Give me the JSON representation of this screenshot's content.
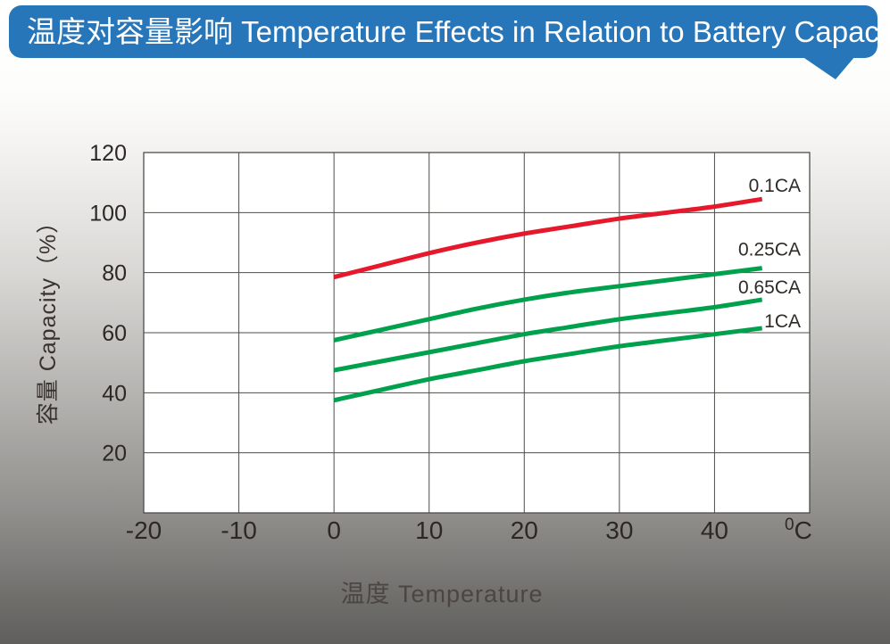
{
  "header": {
    "title": "温度对容量影响 Temperature Effects in Relation to Battery Capacity"
  },
  "colors": {
    "banner_blue": "#2776b9",
    "curve_red": "#e5192b",
    "curve_green": "#00a14d",
    "grid": "#4f4d4a",
    "tick_text": "#2c2824",
    "axis_title_text": "#4b4641"
  },
  "chart_data": {
    "type": "line",
    "title": "温度对容量影响 Temperature Effects in Relation to Battery Capacity",
    "xlabel": "温度  Temperature",
    "ylabel": "容量 Capacity（%）",
    "x_unit": {
      "superscript": "0",
      "letter": "C"
    },
    "xlim": [
      -20,
      50
    ],
    "ylim": [
      0,
      120
    ],
    "x_ticks": [
      -20,
      -10,
      0,
      10,
      20,
      30,
      40
    ],
    "y_ticks": [
      120,
      100,
      80,
      60,
      40,
      20
    ],
    "grid": true,
    "legend_position": "labels at right end of each curve",
    "x": [
      0,
      5,
      10,
      15,
      20,
      25,
      30,
      35,
      40,
      45
    ],
    "series": [
      {
        "name": "0.1CA",
        "color": "#e5192b",
        "values": [
          78.5,
          82.5,
          86.5,
          90,
          93,
          95.5,
          98,
          100,
          102,
          104.5
        ]
      },
      {
        "name": "0.25CA",
        "color": "#00a14d",
        "values": [
          57.5,
          61,
          64.5,
          68,
          71,
          73.5,
          75.5,
          77.5,
          79.5,
          81.5
        ]
      },
      {
        "name": "0.65CA",
        "color": "#00a14d",
        "values": [
          47.5,
          50.5,
          53.5,
          56.5,
          59.5,
          62,
          64.5,
          66.5,
          68.5,
          71
        ]
      },
      {
        "name": "1CA",
        "color": "#00a14d",
        "values": [
          37.5,
          41,
          44.5,
          47.5,
          50.5,
          53,
          55.5,
          57.5,
          59.5,
          61.5
        ]
      }
    ]
  }
}
